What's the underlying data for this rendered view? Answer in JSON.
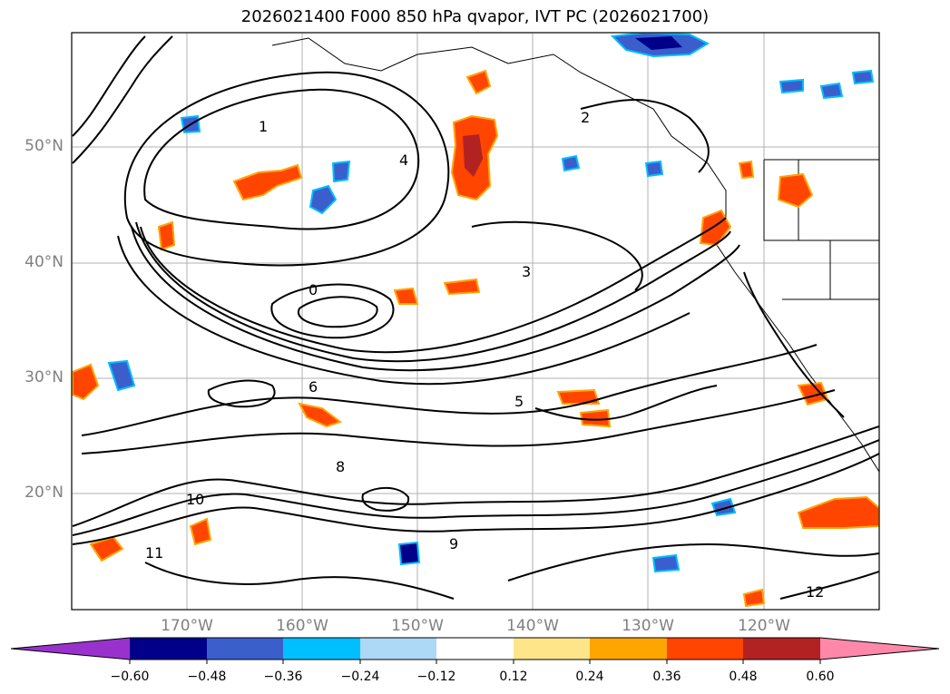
{
  "title": "2026021400 F000 850 hPa qvapor, IVT PC (2026021700)",
  "map": {
    "lat_labels": [
      "50°N",
      "40°N",
      "30°N",
      "20°N"
    ],
    "lon_labels": [
      "170°W",
      "160°W",
      "150°W",
      "140°W",
      "130°W",
      "120°W"
    ],
    "contour_labels": [
      "1",
      "2",
      "3",
      "4",
      "5",
      "6",
      "8",
      "9",
      "10",
      "11",
      "12",
      "0"
    ]
  },
  "colorbar": {
    "ticks": [
      "−0.60",
      "−0.48",
      "−0.36",
      "−0.24",
      "−0.12",
      "0.12",
      "0.24",
      "0.36",
      "0.48",
      "0.60"
    ],
    "colors": [
      "#9932CC",
      "#00008B",
      "#3A5FCD",
      "#00BFFF",
      "#ADD8F6",
      "#FFFFFF",
      "#FFE58A",
      "#FFA500",
      "#FF4500",
      "#B22222",
      "#FF88AA"
    ]
  }
}
